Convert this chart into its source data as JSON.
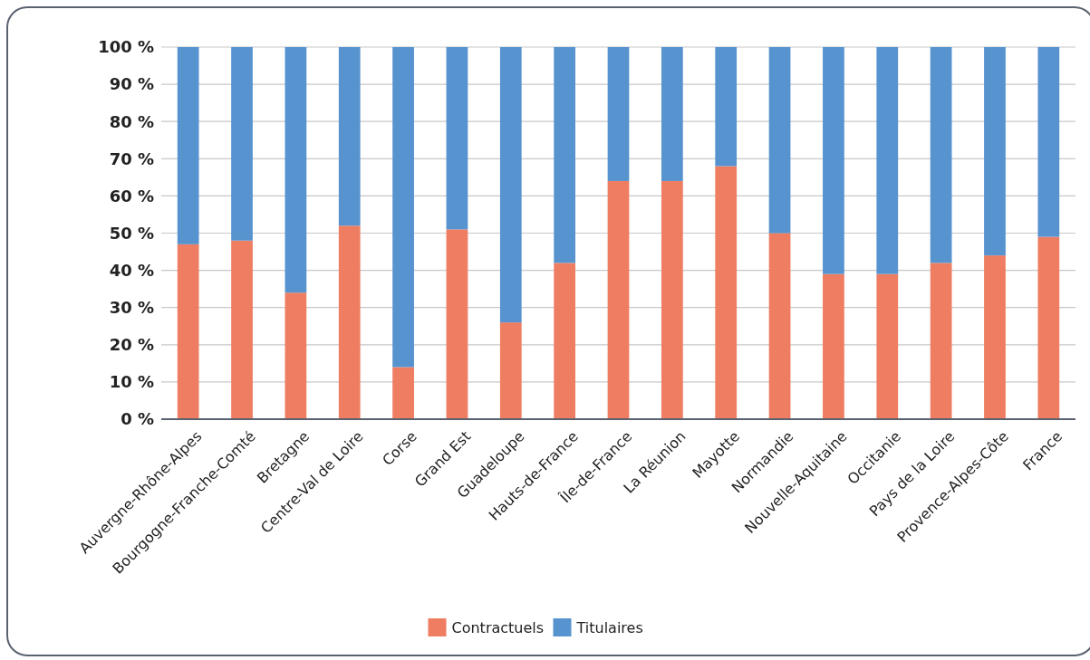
{
  "chart_data": {
    "type": "bar",
    "stacked": true,
    "categories": [
      "Auvergne-Rhône-Alpes",
      "Bourgogne-Franche-Comté",
      "Bretagne",
      "Centre-Val de Loire",
      "Corse",
      "Grand Est",
      "Guadeloupe",
      "Hauts-de-France",
      "Île-de-France",
      "La Réunion",
      "Mayotte",
      "Normandie",
      "Nouvelle-Aquitaine",
      "Occitanie",
      "Pays de la Loire",
      "Provence-Alpes-Côte",
      "France"
    ],
    "series": [
      {
        "name": "Contractuels",
        "color": "#ef7d62",
        "values": [
          47,
          48,
          34,
          52,
          14,
          51,
          26,
          42,
          64,
          64,
          68,
          50,
          39,
          39,
          42,
          44,
          49
        ]
      },
      {
        "name": "Titulaires",
        "color": "#5793cf",
        "values": [
          53,
          52,
          66,
          48,
          86,
          49,
          74,
          58,
          36,
          36,
          32,
          50,
          61,
          61,
          58,
          56,
          51
        ]
      }
    ],
    "ylim": [
      0,
      100
    ],
    "yticks": [
      {
        "value": 0,
        "label": "0 %"
      },
      {
        "value": 10,
        "label": "10 %"
      },
      {
        "value": 20,
        "label": "20 %"
      },
      {
        "value": 30,
        "label": "30 %"
      },
      {
        "value": 40,
        "label": "40 %"
      },
      {
        "value": 50,
        "label": "50 %"
      },
      {
        "value": 60,
        "label": "60 %"
      },
      {
        "value": 70,
        "label": "70 %"
      },
      {
        "value": 80,
        "label": "80 %"
      },
      {
        "value": 90,
        "label": "90 %"
      },
      {
        "value": 100,
        "label": "100 %"
      }
    ],
    "grid": "y",
    "legend": "bottom"
  }
}
